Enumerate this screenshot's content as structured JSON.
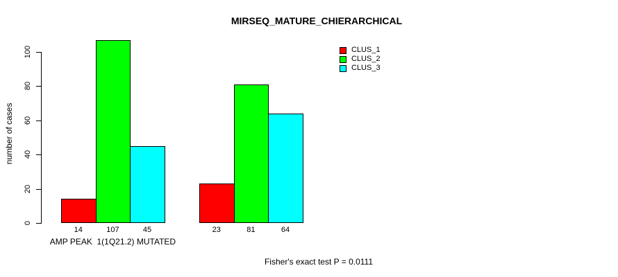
{
  "chart_data": {
    "type": "bar",
    "title": "MIRSEQ_MATURE_CHIERARCHICAL",
    "ylabel": "number of cases",
    "xlabel": "",
    "ylim": [
      0,
      100
    ],
    "yticks": [
      0,
      20,
      40,
      60,
      80,
      100
    ],
    "grid": false,
    "categories": [
      "AMP PEAK  1(1Q21.2) MUTATED",
      ""
    ],
    "series": [
      {
        "name": "CLUS_1",
        "color": "#ff0000",
        "values": [
          14,
          23
        ]
      },
      {
        "name": "CLUS_2",
        "color": "#00ff00",
        "values": [
          107,
          81
        ]
      },
      {
        "name": "CLUS_3",
        "color": "#00ffff",
        "values": [
          45,
          64
        ]
      }
    ],
    "show_value_labels": true,
    "bar_border_color": "#000000",
    "background_color": "#ffffff",
    "legend": {
      "position": "top-right",
      "entries": [
        "CLUS_1",
        "CLUS_2",
        "CLUS_3"
      ]
    },
    "annotation": "Fisher's exact test P = 0.0111"
  }
}
